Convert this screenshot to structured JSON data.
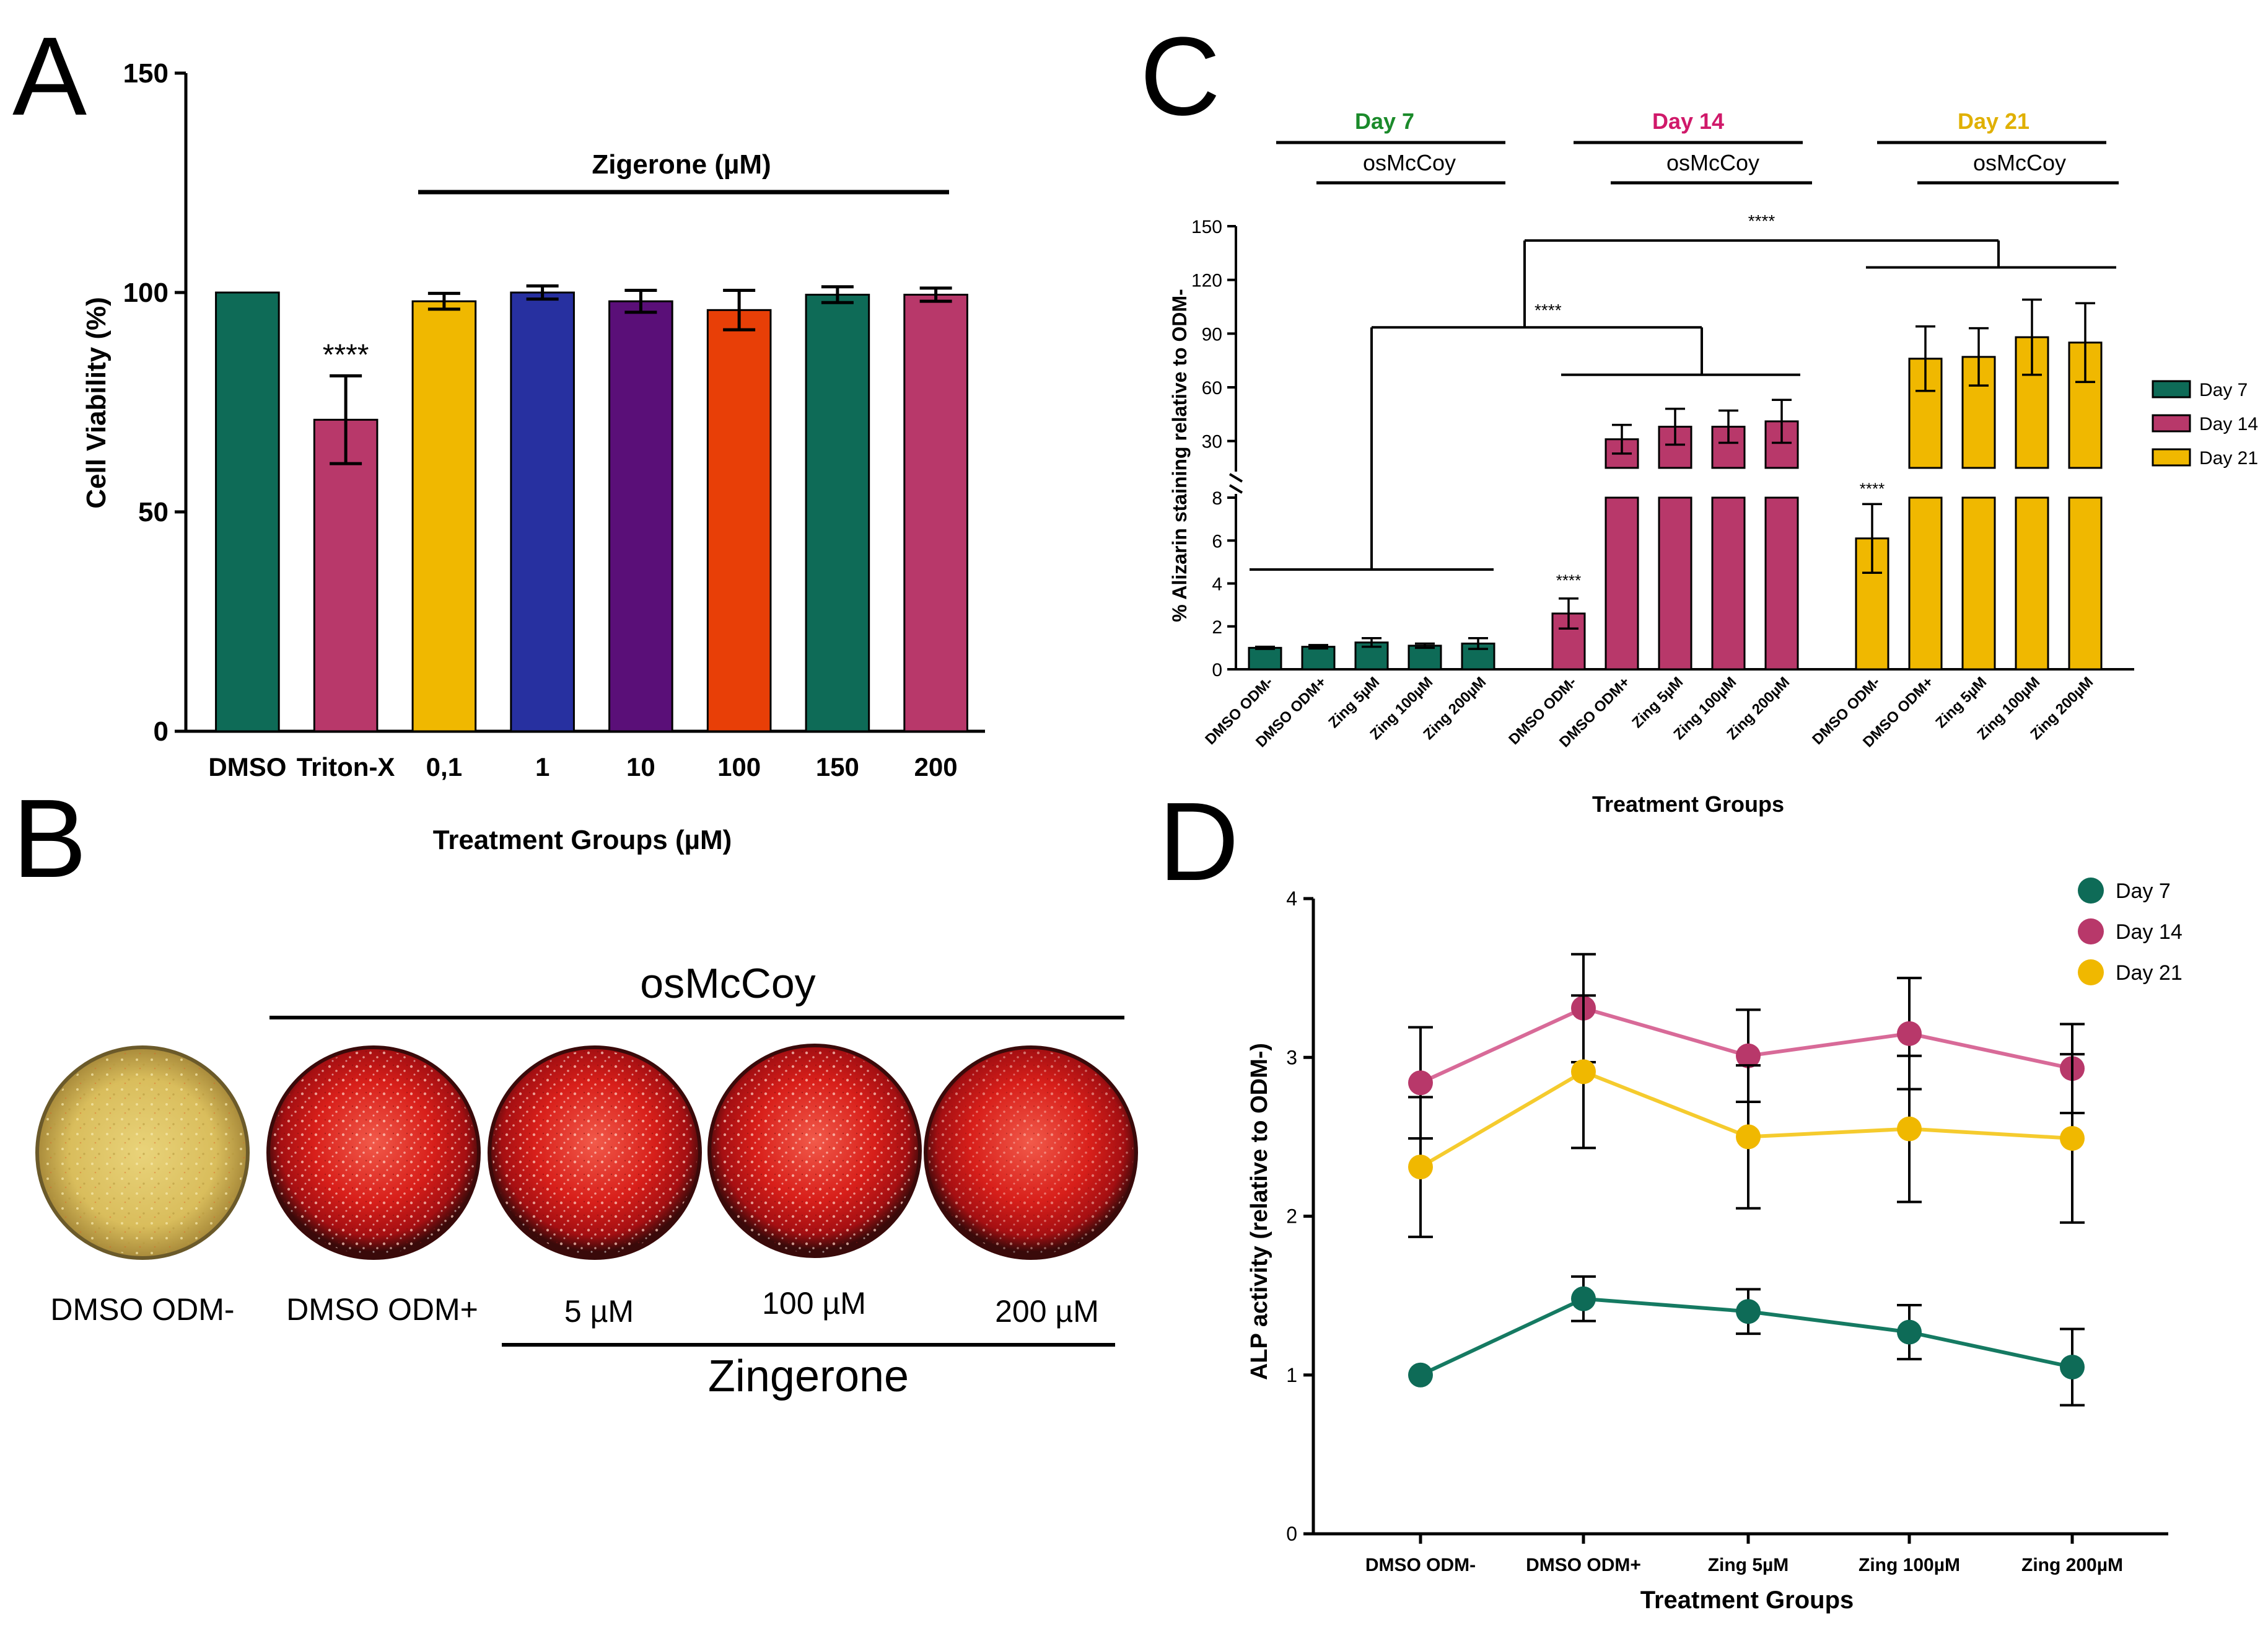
{
  "panels": {
    "A": "A",
    "B": "B",
    "C": "C",
    "D": "D"
  },
  "colors": {
    "green": "#0e6b57",
    "pink": "#b8386a",
    "yellow": "#f0b800",
    "blue": "#2730a0",
    "purple": "#5a0f78",
    "orange": "#e83f07",
    "day7_text": "#1a8a2a",
    "day14_text": "#d0196a",
    "day21_text": "#e0b000"
  },
  "chart_data": [
    {
      "id": "A",
      "type": "bar",
      "title": "",
      "xlabel": "Treatment Groups (µM)",
      "ylabel": "Cell Viability (%)",
      "ylim": [
        0,
        150
      ],
      "yticks": [
        "0",
        "50",
        "100",
        "150"
      ],
      "categories": [
        "DMSO",
        "Triton-X",
        "0,1",
        "1",
        "10",
        "100",
        "150",
        "200"
      ],
      "values": [
        100,
        71,
        98,
        100,
        98,
        96,
        99.5,
        99.5
      ],
      "errors": [
        0,
        10,
        1.8,
        1.5,
        2.5,
        4.5,
        1.8,
        1.5
      ],
      "bar_colors": [
        "green",
        "pink",
        "yellow",
        "blue",
        "purple",
        "orange",
        "green",
        "pink"
      ],
      "significance": "****",
      "bracket_label": "Zigerone (µM)"
    },
    {
      "id": "C",
      "type": "bar",
      "xlabel": "Treatment Groups",
      "ylabel": "% Alizarin staining relative to ODM-",
      "lower_ylim": [
        0,
        8
      ],
      "lower_yticks": [
        "0",
        "2",
        "4",
        "6",
        "8"
      ],
      "upper_ylim": [
        15,
        150
      ],
      "upper_yticks": [
        "30",
        "60",
        "90",
        "120",
        "150"
      ],
      "categories": [
        "DMSO ODM-",
        "DMSO ODM+",
        "Zing 5µM",
        "Zing 100µM",
        "Zing 200µM"
      ],
      "group_labels": [
        "Day 7",
        "Day 14",
        "Day 21"
      ],
      "bracket_label": "osMcCoy",
      "series": [
        {
          "name": "Day 7",
          "values": [
            1.0,
            1.05,
            1.25,
            1.1,
            1.2
          ],
          "errors": [
            0.05,
            0.08,
            0.2,
            0.1,
            0.25
          ]
        },
        {
          "name": "Day 14",
          "values": [
            2.6,
            31,
            38,
            38,
            41
          ],
          "errors": [
            0.7,
            8,
            10,
            9,
            12
          ]
        },
        {
          "name": "Day 21",
          "values": [
            6.1,
            76,
            77,
            88,
            85
          ],
          "errors": [
            1.6,
            18,
            16,
            21,
            22
          ]
        }
      ],
      "stars": [
        "****",
        "****",
        "****",
        "****"
      ],
      "legend": [
        "Day 7",
        "Day 14",
        "Day 21"
      ],
      "legend_position": "right"
    },
    {
      "id": "D",
      "type": "line",
      "xlabel": "Treatment Groups",
      "ylabel": "ALP activity (relative to ODM-)",
      "ylim": [
        0,
        4
      ],
      "yticks": [
        "0",
        "1",
        "2",
        "3",
        "4"
      ],
      "categories": [
        "DMSO ODM-",
        "DMSO ODM+",
        "Zing 5µM",
        "Zing 100µM",
        "Zing 200µM"
      ],
      "series": [
        {
          "name": "Day 7",
          "values": [
            1.0,
            1.48,
            1.4,
            1.27,
            1.05
          ],
          "errors": [
            0,
            0.14,
            0.14,
            0.17,
            0.24
          ]
        },
        {
          "name": "Day 14",
          "values": [
            2.84,
            3.31,
            3.01,
            3.15,
            2.93
          ],
          "errors": [
            0.35,
            0.34,
            0.29,
            0.35,
            0.28
          ]
        },
        {
          "name": "Day 21",
          "values": [
            2.31,
            2.91,
            2.5,
            2.55,
            2.49
          ],
          "errors": [
            0.44,
            0.48,
            0.45,
            0.46,
            0.53
          ]
        }
      ],
      "legend": [
        "Day 7",
        "Day 14",
        "Day 21"
      ],
      "legend_position": "top-right"
    }
  ],
  "panelB": {
    "group_label": "osMcCoy",
    "bracket2_label": "Zingerone",
    "wells": [
      {
        "label": "DMSO ODM-",
        "stain": "yellow"
      },
      {
        "label": "DMSO ODM+",
        "stain": "red"
      },
      {
        "label": "5 µM",
        "stain": "red"
      },
      {
        "label": "100 µM",
        "stain": "red"
      },
      {
        "label": "200 µM",
        "stain": "red"
      }
    ]
  }
}
